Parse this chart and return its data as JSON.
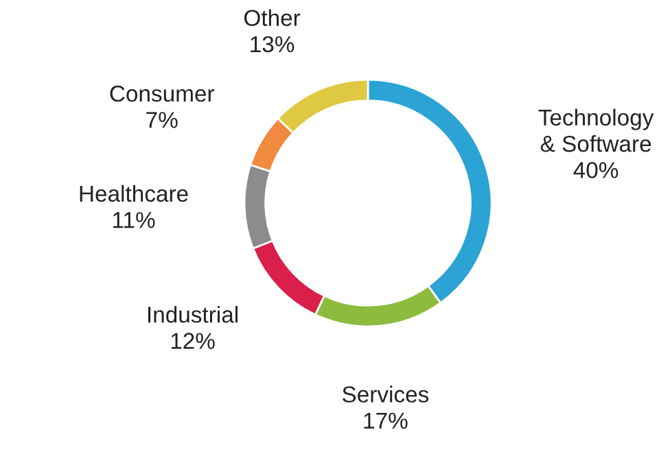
{
  "chart_data": {
    "type": "donut",
    "categories": [
      "Technology\n& Software",
      "Services",
      "Industrial",
      "Healthcare",
      "Consumer",
      "Other"
    ],
    "values": [
      40,
      17,
      12,
      11,
      7,
      13
    ],
    "value_labels": [
      "40%",
      "17%",
      "12%",
      "11%",
      "7%",
      "13%"
    ],
    "colors": [
      "#2ba3d4",
      "#8cbb3e",
      "#d91f4a",
      "#8c8c8c",
      "#f08a3e",
      "#dfc842"
    ],
    "legend": false
  }
}
